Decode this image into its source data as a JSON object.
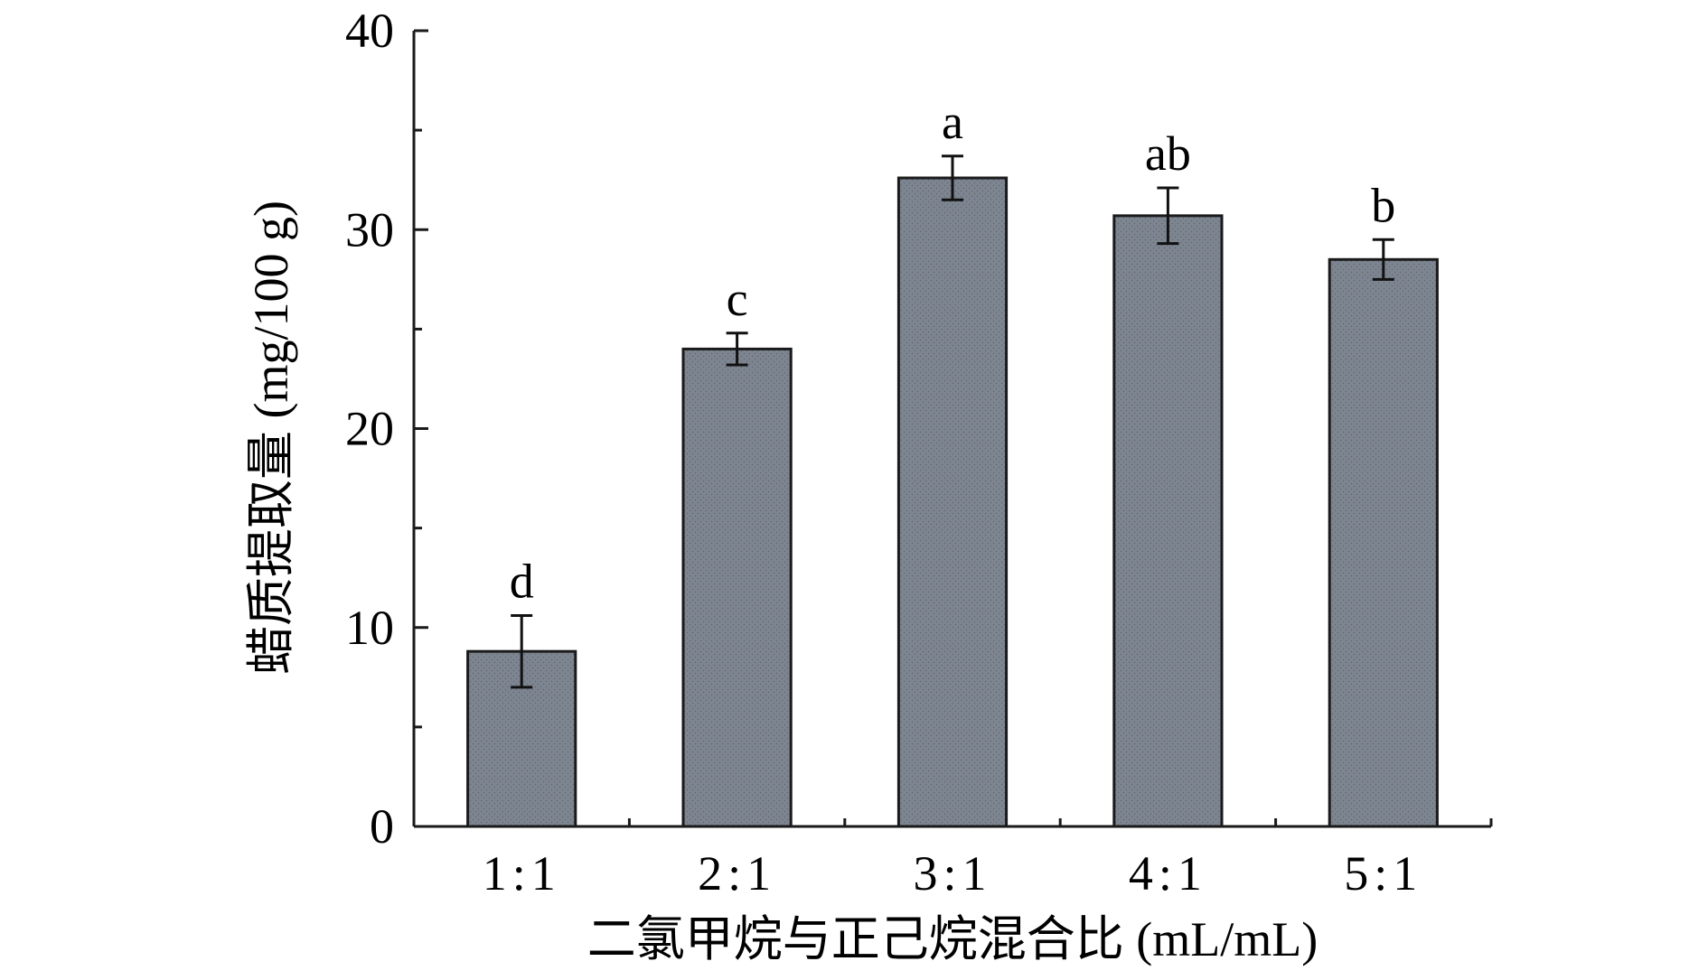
{
  "chart_data": {
    "type": "bar",
    "categories": [
      "1:1",
      "2:1",
      "3:1",
      "4:1",
      "5:1"
    ],
    "values": [
      8.8,
      24.0,
      32.6,
      30.7,
      28.5
    ],
    "errors": [
      1.8,
      0.8,
      1.1,
      1.4,
      1.0
    ],
    "significance_labels": [
      "d",
      "c",
      "a",
      "ab",
      "b"
    ],
    "xlabel": "二氯甲烷与正己烷混合比 (mL/mL)",
    "ylabel": "蜡质提取量 (mg/100 g)",
    "ylim": [
      0,
      40
    ],
    "yticks": [
      0,
      10,
      20,
      30,
      40
    ],
    "grid": false,
    "colors": {
      "bar_fill": "#7d8591",
      "bar_stroke": "#1a1a1a",
      "axis": "#1a1a1a",
      "background": "#ffffff"
    }
  }
}
